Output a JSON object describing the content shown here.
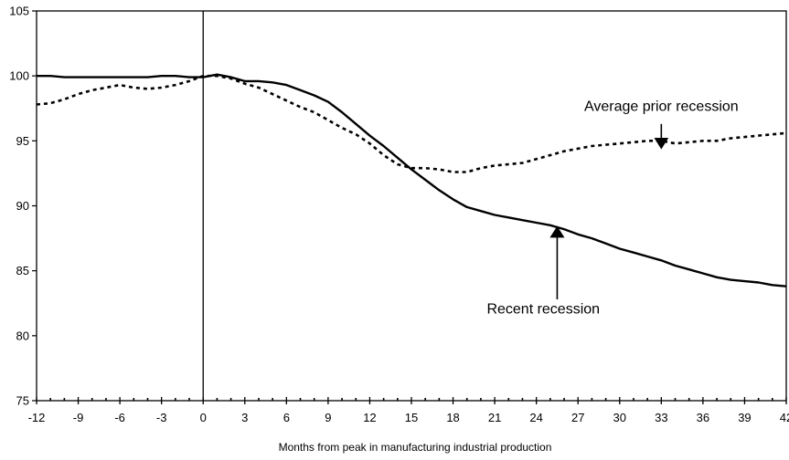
{
  "chart_data": {
    "type": "line",
    "title": "",
    "xlabel": "Months from peak in manufacturing industrial production",
    "ylabel": "",
    "xlim": [
      -12,
      42
    ],
    "ylim": [
      75,
      105
    ],
    "grid": false,
    "x_ticks": [
      -12,
      -9,
      -6,
      -3,
      0,
      3,
      6,
      9,
      12,
      15,
      18,
      21,
      24,
      27,
      30,
      33,
      36,
      39,
      42
    ],
    "y_ticks": [
      75,
      80,
      85,
      90,
      95,
      100,
      105
    ],
    "reference_line_x": 0,
    "series": [
      {
        "name": "Recent recession",
        "style": "solid",
        "color": "#000000",
        "x": [
          -12,
          -11,
          -10,
          -9,
          -8,
          -7,
          -6,
          -5,
          -4,
          -3,
          -2,
          -1,
          0,
          1,
          2,
          3,
          4,
          5,
          6,
          7,
          8,
          9,
          10,
          11,
          12,
          13,
          14,
          15,
          16,
          17,
          18,
          19,
          20,
          21,
          22,
          23,
          24,
          25,
          26,
          27,
          28,
          29,
          30,
          31,
          32,
          33,
          34,
          35,
          36,
          37,
          38,
          39,
          40,
          41,
          42
        ],
        "values": [
          100.0,
          100.0,
          99.9,
          99.9,
          99.9,
          99.9,
          99.9,
          99.9,
          99.9,
          100.0,
          100.0,
          99.9,
          99.9,
          100.1,
          99.9,
          99.6,
          99.6,
          99.5,
          99.3,
          98.9,
          98.5,
          98.0,
          97.2,
          96.3,
          95.4,
          94.6,
          93.7,
          92.8,
          92.0,
          91.2,
          90.5,
          89.9,
          89.6,
          89.3,
          89.1,
          88.9,
          88.7,
          88.5,
          88.2,
          87.8,
          87.5,
          87.1,
          86.7,
          86.4,
          86.1,
          85.8,
          85.4,
          85.1,
          84.8,
          84.5,
          84.3,
          84.2,
          84.1,
          83.9,
          83.8
        ]
      },
      {
        "name": "Average prior recession",
        "style": "dotted",
        "color": "#000000",
        "x": [
          -12,
          -11,
          -10,
          -9,
          -8,
          -7,
          -6,
          -5,
          -4,
          -3,
          -2,
          -1,
          0,
          1,
          2,
          3,
          4,
          5,
          6,
          7,
          8,
          9,
          10,
          11,
          12,
          13,
          14,
          15,
          16,
          17,
          18,
          19,
          20,
          21,
          22,
          23,
          24,
          25,
          26,
          27,
          28,
          29,
          30,
          31,
          32,
          33,
          34,
          35,
          36,
          37,
          38,
          39,
          40,
          41,
          42
        ],
        "values": [
          97.8,
          97.9,
          98.2,
          98.6,
          98.9,
          99.1,
          99.3,
          99.1,
          99.0,
          99.1,
          99.3,
          99.6,
          100.0,
          100.0,
          99.8,
          99.4,
          99.1,
          98.6,
          98.1,
          97.6,
          97.2,
          96.6,
          96.0,
          95.5,
          94.8,
          93.9,
          93.2,
          92.9,
          92.9,
          92.8,
          92.6,
          92.6,
          92.9,
          93.1,
          93.2,
          93.3,
          93.6,
          93.9,
          94.2,
          94.4,
          94.6,
          94.7,
          94.8,
          94.9,
          95.0,
          95.0,
          94.8,
          94.9,
          95.0,
          95.0,
          95.2,
          95.3,
          95.4,
          95.5,
          95.6
        ]
      }
    ],
    "annotations": [
      {
        "text": "Average prior recession",
        "label_x": 33,
        "label_y": 97.3,
        "arrow_from": [
          33,
          96.3
        ],
        "arrow_to": [
          33,
          94.8
        ]
      },
      {
        "text": "Recent recession",
        "label_x": 24.5,
        "label_y": 81.7,
        "arrow_from": [
          25.5,
          82.8
        ],
        "arrow_to": [
          25.5,
          88.0
        ]
      }
    ]
  }
}
